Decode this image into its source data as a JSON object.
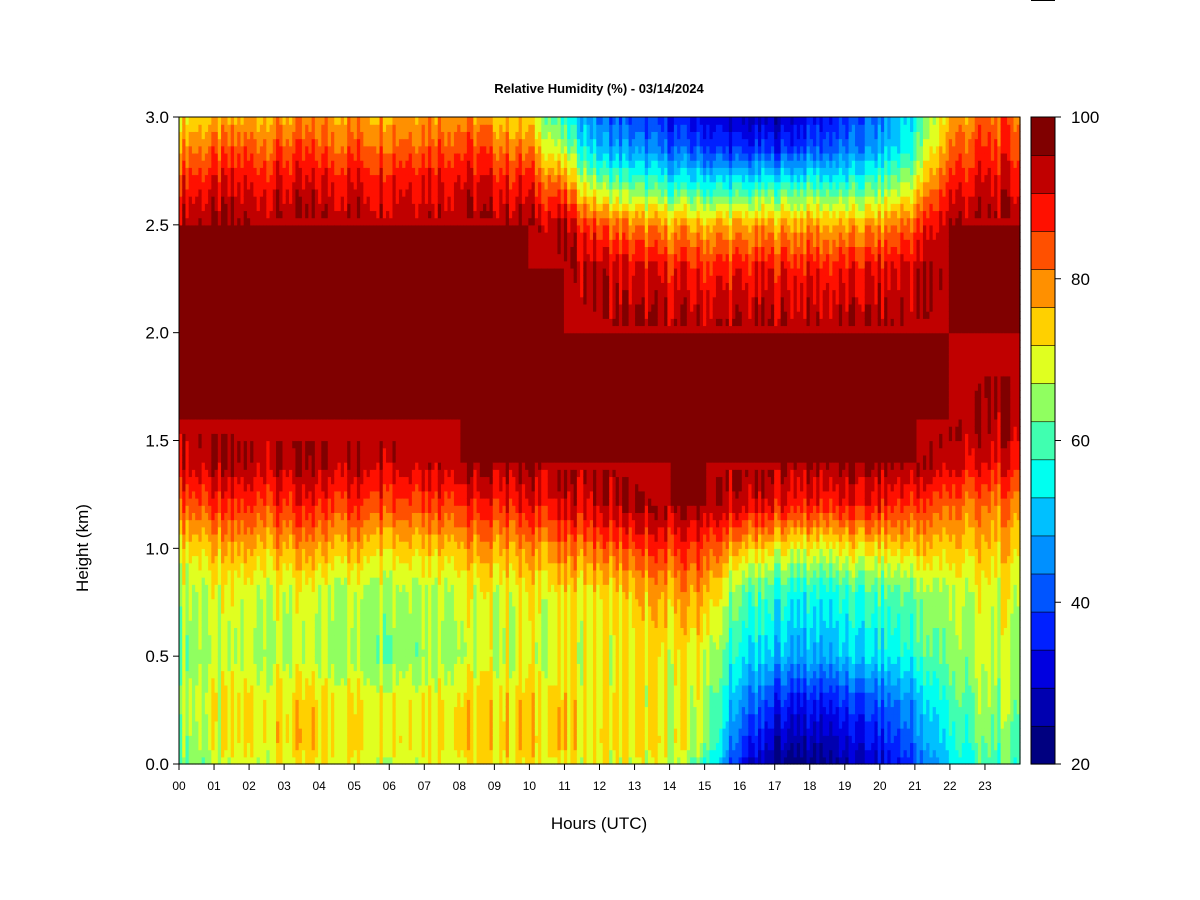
{
  "chart_data": {
    "type": "heatmap",
    "title": "Relative Humidity (%) - 03/14/2024",
    "xlabel": "Hours (UTC)",
    "ylabel": "Height (km)",
    "x_ticks": [
      "00",
      "01",
      "02",
      "03",
      "04",
      "05",
      "06",
      "07",
      "08",
      "09",
      "10",
      "11",
      "12",
      "13",
      "14",
      "15",
      "16",
      "17",
      "18",
      "19",
      "20",
      "21",
      "22",
      "23"
    ],
    "xlim": [
      0,
      24
    ],
    "y_ticks": [
      "0.0",
      "0.5",
      "1.0",
      "1.5",
      "2.0",
      "2.5",
      "3.0"
    ],
    "ylim": [
      0,
      3
    ],
    "colorbar": {
      "ticks": [
        "20",
        "40",
        "60",
        "80",
        "100"
      ],
      "range": [
        20,
        100
      ],
      "levels": [
        20,
        25,
        30,
        35,
        40,
        45,
        50,
        55,
        60,
        65,
        70,
        75,
        80,
        85,
        90,
        95,
        100
      ],
      "colors": [
        "#000080",
        "#0000B0",
        "#0000E0",
        "#0020FF",
        "#0055FF",
        "#0090FF",
        "#00C0FF",
        "#00FFF0",
        "#40FFB0",
        "#90FF60",
        "#E0FF20",
        "#FFD000",
        "#FF9000",
        "#FF5000",
        "#FF1000",
        "#C00000",
        "#800000"
      ]
    },
    "z_bands": {
      "description_units": "relative humidity (%)",
      "hours": [
        0,
        2,
        4,
        6,
        8,
        10,
        11,
        12,
        13,
        14,
        15,
        16,
        17,
        18,
        19,
        20,
        21,
        22,
        23,
        24
      ],
      "heights": [
        0,
        0.1,
        0.3,
        0.5,
        0.8,
        1.0,
        1.2,
        1.4,
        1.6,
        2.0,
        2.3,
        2.5,
        2.7,
        2.85,
        3.0
      ],
      "values": [
        [
          65,
          72,
          74,
          73,
          74,
          75,
          74,
          73,
          72,
          70,
          62,
          35,
          22,
          22,
          25,
          30,
          40,
          55,
          62,
          62
        ],
        [
          68,
          75,
          77,
          76,
          77,
          78,
          77,
          76,
          75,
          74,
          70,
          40,
          28,
          27,
          30,
          35,
          45,
          58,
          64,
          64
        ],
        [
          70,
          75,
          76,
          75,
          76,
          77,
          76,
          75,
          74,
          73,
          71,
          48,
          38,
          36,
          38,
          42,
          50,
          62,
          68,
          68
        ],
        [
          68,
          70,
          69,
          68,
          70,
          72,
          73,
          73,
          74,
          74,
          73,
          56,
          52,
          50,
          52,
          55,
          60,
          67,
          70,
          70
        ],
        [
          70,
          72,
          71,
          70,
          72,
          74,
          75,
          76,
          78,
          80,
          82,
          64,
          60,
          58,
          60,
          62,
          66,
          70,
          72,
          72
        ],
        [
          76,
          80,
          80,
          79,
          80,
          82,
          84,
          86,
          88,
          90,
          90,
          78,
          75,
          73,
          74,
          76,
          78,
          78,
          78,
          78
        ],
        [
          88,
          90,
          91,
          90,
          91,
          93,
          95,
          97,
          99,
          100,
          100,
          96,
          94,
          92,
          92,
          92,
          90,
          86,
          84,
          84
        ],
        [
          98,
          99,
          99,
          99,
          100,
          100,
          100,
          100,
          100,
          100,
          100,
          100,
          100,
          100,
          100,
          100,
          100,
          98,
          94,
          94
        ],
        [
          100,
          100,
          100,
          100,
          100,
          100,
          100,
          100,
          100,
          100,
          100,
          100,
          100,
          100,
          100,
          100,
          100,
          100,
          99,
          99
        ],
        [
          100,
          100,
          100,
          100,
          100,
          100,
          100,
          100,
          100,
          100,
          100,
          100,
          100,
          100,
          100,
          100,
          100,
          100,
          100,
          100
        ],
        [
          100,
          100,
          100,
          100,
          100,
          100,
          100,
          98,
          95,
          93,
          92,
          92,
          93,
          93,
          92,
          94,
          97,
          100,
          100,
          100
        ],
        [
          100,
          100,
          100,
          100,
          100,
          100,
          98,
          88,
          83,
          81,
          80,
          80,
          81,
          82,
          80,
          82,
          88,
          100,
          100,
          100
        ],
        [
          92,
          94,
          95,
          95,
          96,
          92,
          82,
          66,
          62,
          58,
          57,
          56,
          58,
          60,
          58,
          62,
          72,
          92,
          95,
          95
        ],
        [
          84,
          88,
          88,
          88,
          90,
          84,
          68,
          52,
          48,
          44,
          41,
          38,
          38,
          42,
          44,
          50,
          62,
          86,
          90,
          90
        ],
        [
          76,
          80,
          82,
          82,
          84,
          76,
          58,
          45,
          40,
          36,
          33,
          28,
          28,
          34,
          38,
          45,
          58,
          80,
          86,
          86
        ]
      ]
    }
  }
}
